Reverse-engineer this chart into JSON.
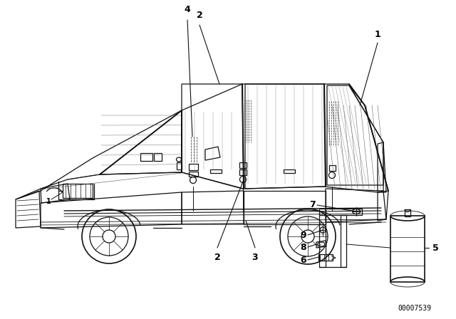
{
  "background_color": "#ffffff",
  "image_code": "00007539",
  "line_color": "#111111",
  "lw": 0.9
}
